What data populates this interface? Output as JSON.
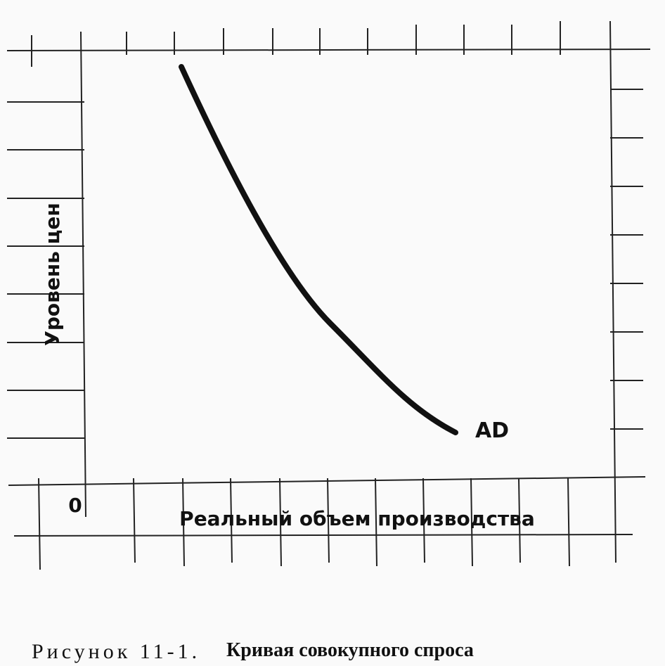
{
  "diagram": {
    "y_axis_label": "Уровень цен",
    "x_axis_label": "Реальный объем производства",
    "origin_label": "0",
    "curve_label": "AD"
  },
  "caption": {
    "number": "Рисунок 11-1.",
    "title": "Кривая совокупного спроса"
  }
}
